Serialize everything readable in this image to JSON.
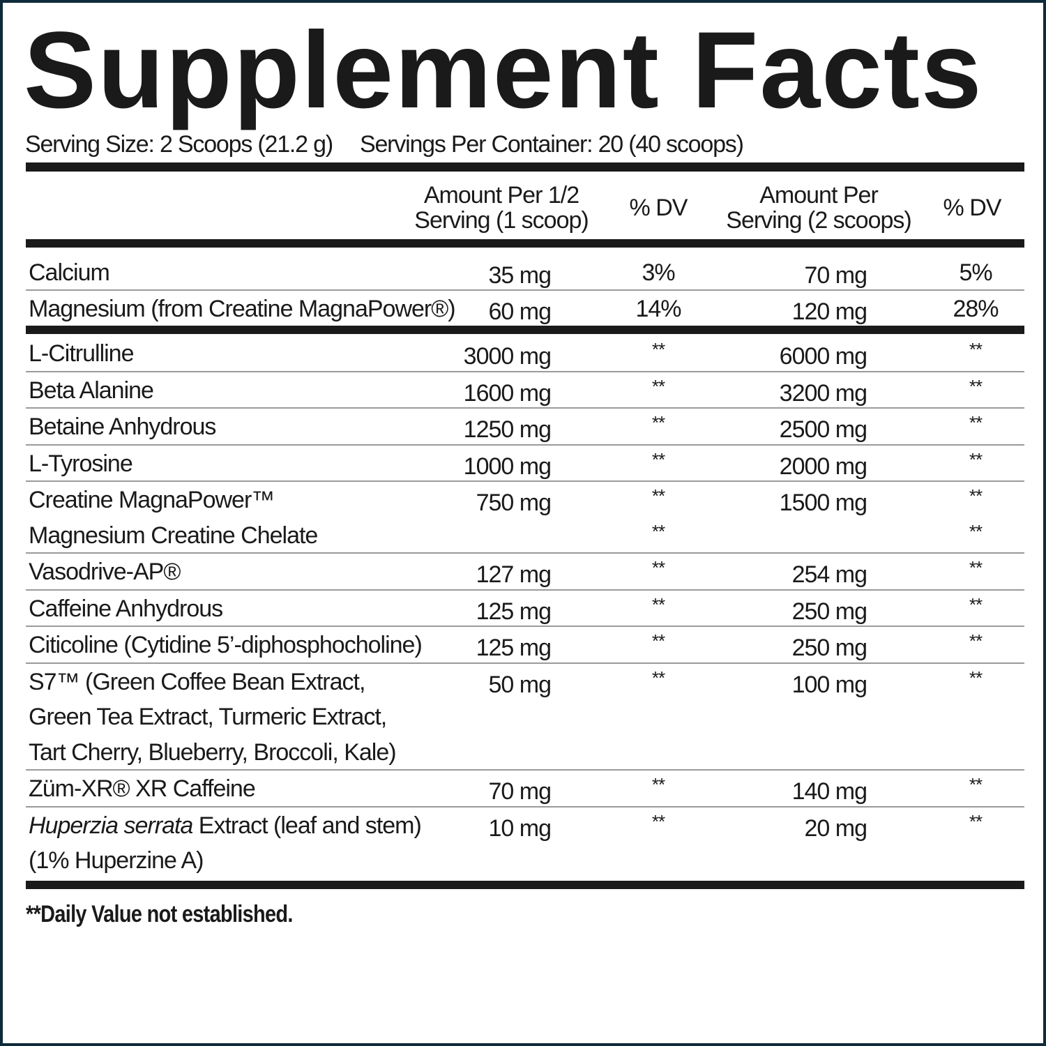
{
  "title": "Supplement Facts",
  "serving_size": "Serving Size: 2 Scoops (21.2 g)",
  "servings_per_container": "Servings Per Container: 20 (40 scoops)",
  "columns": {
    "half_amount": [
      "Amount Per 1/2",
      "Serving (1 scoop)"
    ],
    "half_dv": "% DV",
    "full_amount": [
      "Amount Per",
      "Serving (2 scoops)"
    ],
    "full_dv": "% DV"
  },
  "section1": [
    {
      "lines": [
        {
          "name": "Calcium",
          "amt1": "35 mg",
          "dv1": "3%",
          "amt2": "70 mg",
          "dv2": "5%"
        }
      ]
    },
    {
      "lines": [
        {
          "name": "Magnesium (from Creatine MagnaPower®)",
          "amt1": "60 mg",
          "dv1": "14%",
          "amt2": "120 mg",
          "dv2": "28%"
        }
      ]
    }
  ],
  "section2": [
    {
      "lines": [
        {
          "name": "L-Citrulline",
          "amt1": "3000 mg",
          "dv1": "**",
          "amt2": "6000 mg",
          "dv2": "**"
        }
      ]
    },
    {
      "lines": [
        {
          "name": "Beta Alanine",
          "amt1": "1600 mg",
          "dv1": "**",
          "amt2": "3200 mg",
          "dv2": "**"
        }
      ]
    },
    {
      "lines": [
        {
          "name": "Betaine Anhydrous",
          "amt1": "1250 mg",
          "dv1": "**",
          "amt2": "2500 mg",
          "dv2": "**"
        }
      ]
    },
    {
      "lines": [
        {
          "name": "L-Tyrosine",
          "amt1": "1000 mg",
          "dv1": "**",
          "amt2": "2000 mg",
          "dv2": "**"
        }
      ]
    },
    {
      "lines": [
        {
          "name": "Creatine MagnaPower™",
          "amt1": "750 mg",
          "dv1": "**",
          "amt2": "1500 mg",
          "dv2": "**"
        },
        {
          "name": "Magnesium Creatine Chelate",
          "dv1": "**",
          "dv2": "**"
        }
      ]
    },
    {
      "lines": [
        {
          "name": "Vasodrive-AP®",
          "amt1": "127 mg",
          "dv1": "**",
          "amt2": "254 mg",
          "dv2": "**"
        }
      ]
    },
    {
      "lines": [
        {
          "name": "Caffeine Anhydrous",
          "amt1": "125 mg",
          "dv1": "**",
          "amt2": "250 mg",
          "dv2": "**"
        }
      ]
    },
    {
      "lines": [
        {
          "name": "Citicoline (Cytidine 5’-diphosphocholine)",
          "amt1": "125 mg",
          "dv1": "**",
          "amt2": "250 mg",
          "dv2": "**"
        }
      ]
    },
    {
      "lines": [
        {
          "name": "S7™ (Green Coffee Bean Extract,",
          "amt1": "50 mg",
          "dv1": "**",
          "amt2": "100 mg",
          "dv2": "**"
        },
        {
          "name": "Green Tea Extract, Turmeric Extract,"
        },
        {
          "name": "Tart Cherry, Blueberry, Broccoli, Kale)"
        }
      ]
    },
    {
      "lines": [
        {
          "name": "Züm-XR® XR Caffeine",
          "amt1": "70 mg",
          "dv1": "**",
          "amt2": "140 mg",
          "dv2": "**"
        }
      ]
    },
    {
      "lines": [
        {
          "name_italic": "Huperzia serrata",
          "name": " Extract (leaf and stem)",
          "amt1": "10 mg",
          "dv1": "**",
          "amt2": "20 mg",
          "dv2": "**"
        },
        {
          "name": "(1% Huperzine A)"
        }
      ]
    }
  ],
  "footnote": "**Daily Value not established.",
  "colors": {
    "frame": "#0f2a3a",
    "text": "#1a1a1a",
    "rule": "#9a9a9a"
  }
}
